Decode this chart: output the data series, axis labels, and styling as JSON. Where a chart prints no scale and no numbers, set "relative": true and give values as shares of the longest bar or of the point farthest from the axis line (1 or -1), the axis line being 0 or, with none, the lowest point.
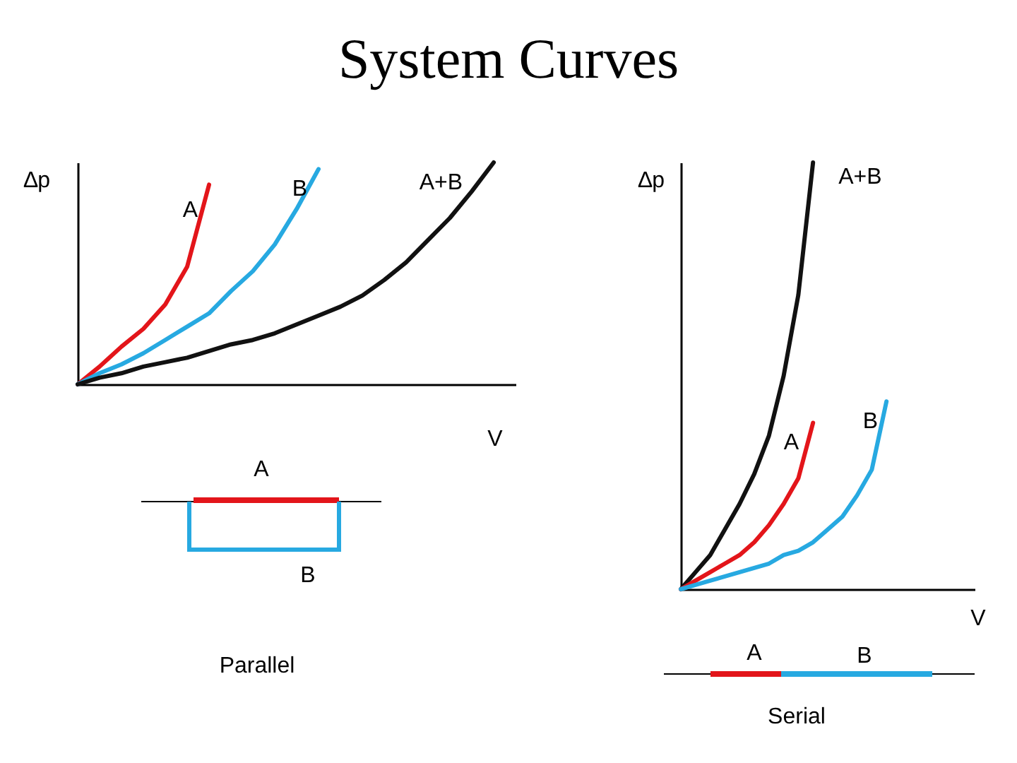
{
  "chart_data": [
    {
      "type": "line",
      "title": "System Curves",
      "xlabel": "V",
      "ylabel": "∆p",
      "relative": true,
      "grid": false,
      "legend": false,
      "marker": "none",
      "line_style": "solid",
      "annotations": [
        "A",
        "B",
        "Parallel"
      ],
      "categories": [
        null,
        null,
        null,
        null,
        null,
        null,
        null,
        null,
        null,
        null,
        null,
        null,
        null,
        null,
        null,
        null,
        null,
        null,
        null,
        null,
        null
      ],
      "series": [
        {
          "name": "A",
          "color": "#e3151a",
          "values": [
            0,
            0.08,
            0.17,
            0.25,
            0.36,
            0.53,
            0.9,
            null,
            null,
            null,
            null,
            null,
            null,
            null,
            null,
            null,
            null,
            null,
            null,
            null,
            null
          ]
        },
        {
          "name": "B",
          "color": "#27a9e1",
          "values": [
            0,
            0.05,
            0.09,
            0.14,
            0.2,
            0.26,
            0.32,
            0.42,
            0.51,
            0.63,
            0.79,
            0.97,
            null,
            null,
            null,
            null,
            null,
            null,
            null,
            null,
            null
          ]
        },
        {
          "name": "A+B",
          "color": "#111111",
          "values": [
            0,
            0.03,
            0.05,
            0.08,
            0.1,
            0.12,
            0.15,
            0.18,
            0.2,
            0.23,
            0.27,
            0.31,
            0.35,
            0.4,
            0.47,
            0.55,
            0.65,
            0.75,
            0.87,
            1,
            null
          ]
        }
      ]
    },
    {
      "type": "line",
      "xlabel": "V",
      "ylabel": "∆p",
      "relative": true,
      "grid": false,
      "legend": false,
      "marker": "none",
      "line_style": "solid",
      "annotations": [
        "A",
        "B",
        "Serial"
      ],
      "categories": [
        null,
        null,
        null,
        null,
        null,
        null,
        null,
        null,
        null,
        null,
        null,
        null,
        null,
        null,
        null,
        null,
        null,
        null,
        null,
        null,
        null
      ],
      "series": [
        {
          "name": "A+B",
          "color": "#111111",
          "values": [
            0,
            0.04,
            0.08,
            0.14,
            0.2,
            0.27,
            0.36,
            0.5,
            0.69,
            1,
            null,
            null,
            null,
            null,
            null,
            null,
            null,
            null,
            null,
            null,
            null
          ]
        },
        {
          "name": "A",
          "color": "#e3151a",
          "values": [
            0,
            0.02,
            0.04,
            0.06,
            0.08,
            0.11,
            0.15,
            0.2,
            0.26,
            0.39,
            null,
            null,
            null,
            null,
            null,
            null,
            null,
            null,
            null,
            null,
            null
          ]
        },
        {
          "name": "B",
          "color": "#27a9e1",
          "values": [
            0,
            0.01,
            0.02,
            0.03,
            0.04,
            0.05,
            0.06,
            0.08,
            0.09,
            0.11,
            0.14,
            0.17,
            0.22,
            0.28,
            0.44,
            null,
            null,
            null,
            null,
            null,
            null
          ]
        }
      ]
    }
  ]
}
